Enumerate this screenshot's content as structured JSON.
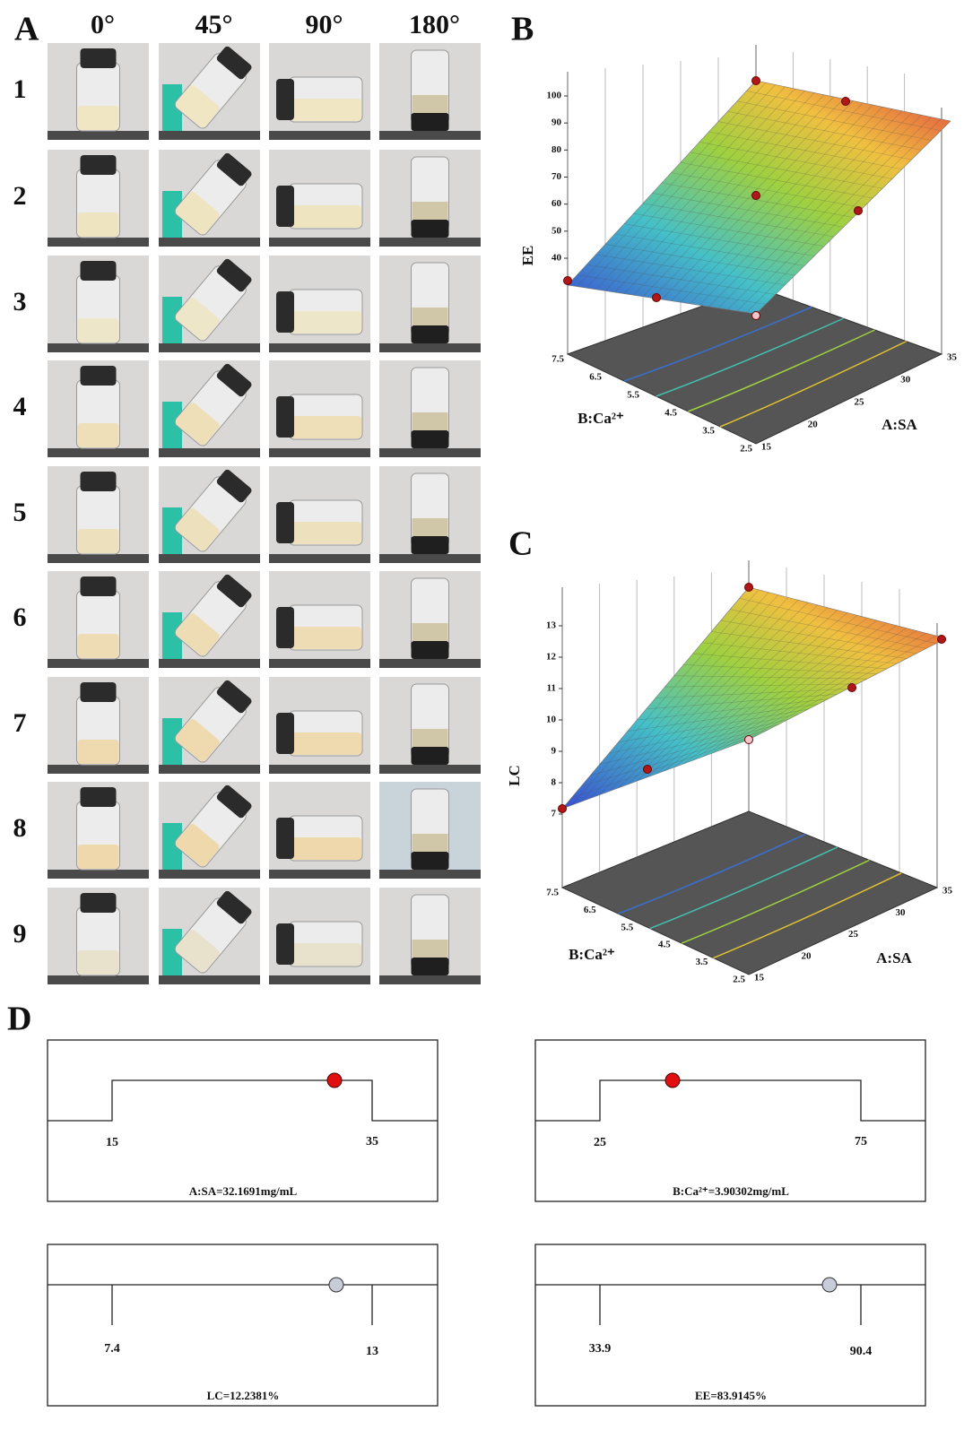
{
  "panel_a": {
    "label": "A",
    "columns": [
      "0°",
      "45°",
      "90°",
      "180°"
    ],
    "rows": [
      "1",
      "2",
      "3",
      "4",
      "5",
      "6",
      "7",
      "8",
      "9"
    ]
  },
  "panel_b": {
    "label": "B",
    "z_label": "EE",
    "x_label": "A:SA",
    "y_label": "B:Ca²⁺",
    "zticks": [
      40,
      50,
      60,
      70,
      80,
      90,
      100
    ],
    "xticks": [
      15,
      20,
      25,
      30,
      35
    ],
    "yticks": [
      7.5,
      6.5,
      5.5,
      4.5,
      3.5,
      2.5
    ]
  },
  "panel_c": {
    "label": "C",
    "z_label": "LC",
    "x_label": "A:SA",
    "y_label": "B:Ca²⁺",
    "zticks": [
      7,
      8,
      9,
      10,
      11,
      12,
      13
    ],
    "xticks": [
      15,
      20,
      25,
      30,
      35
    ],
    "yticks": [
      7.5,
      6.5,
      5.5,
      4.5,
      3.5,
      2.5
    ]
  },
  "panel_d": {
    "label": "D",
    "boxes": [
      {
        "low": 15,
        "high": 35,
        "caption": "A:SA=32.1691mg/mL"
      },
      {
        "low": 25,
        "high": 75,
        "caption": "B:Ca²⁺=3.90302mg/mL"
      },
      {
        "low": 7.4,
        "high": 13,
        "caption": "LC=12.2381%"
      },
      {
        "low": 33.9,
        "high": 90.4,
        "caption": "EE=83.9145%"
      }
    ]
  }
}
